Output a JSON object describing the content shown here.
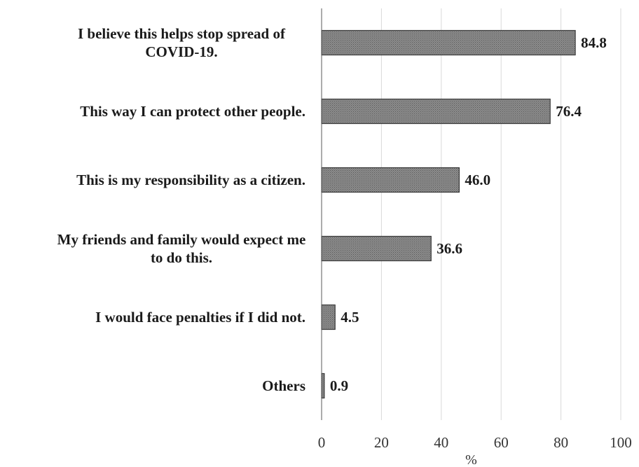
{
  "chart_data": {
    "type": "bar",
    "orientation": "horizontal",
    "categories": [
      [
        "I believe this helps stop spread of",
        "COVID-19."
      ],
      [
        "This way I can protect other people."
      ],
      [
        "This is my responsibility as a citizen."
      ],
      [
        "My friends and family would expect me",
        "to do this."
      ],
      [
        "I would face penalties if I did not."
      ],
      [
        "Others"
      ]
    ],
    "values": [
      84.8,
      76.4,
      46.0,
      36.6,
      4.5,
      0.9
    ],
    "value_labels": [
      "84.8",
      "76.4",
      "46.0",
      "36.6",
      "4.5",
      "0.9"
    ],
    "xlabel": "%",
    "ylabel": "",
    "title": "",
    "xlim": [
      0,
      100
    ],
    "xticks": [
      0,
      20,
      40,
      60,
      80,
      100
    ],
    "xtick_labels": [
      "0",
      "20",
      "40",
      "60",
      "80",
      "100"
    ],
    "grid": "vertical",
    "legend": "none",
    "colors": {
      "bar_fill": "#8c8c8c",
      "bar_pattern": "#5a5a5a",
      "bar_edge": "#3a3a3a",
      "grid": "#d9d9d9",
      "axis": "#595959",
      "text": "#1a1a1a"
    }
  }
}
